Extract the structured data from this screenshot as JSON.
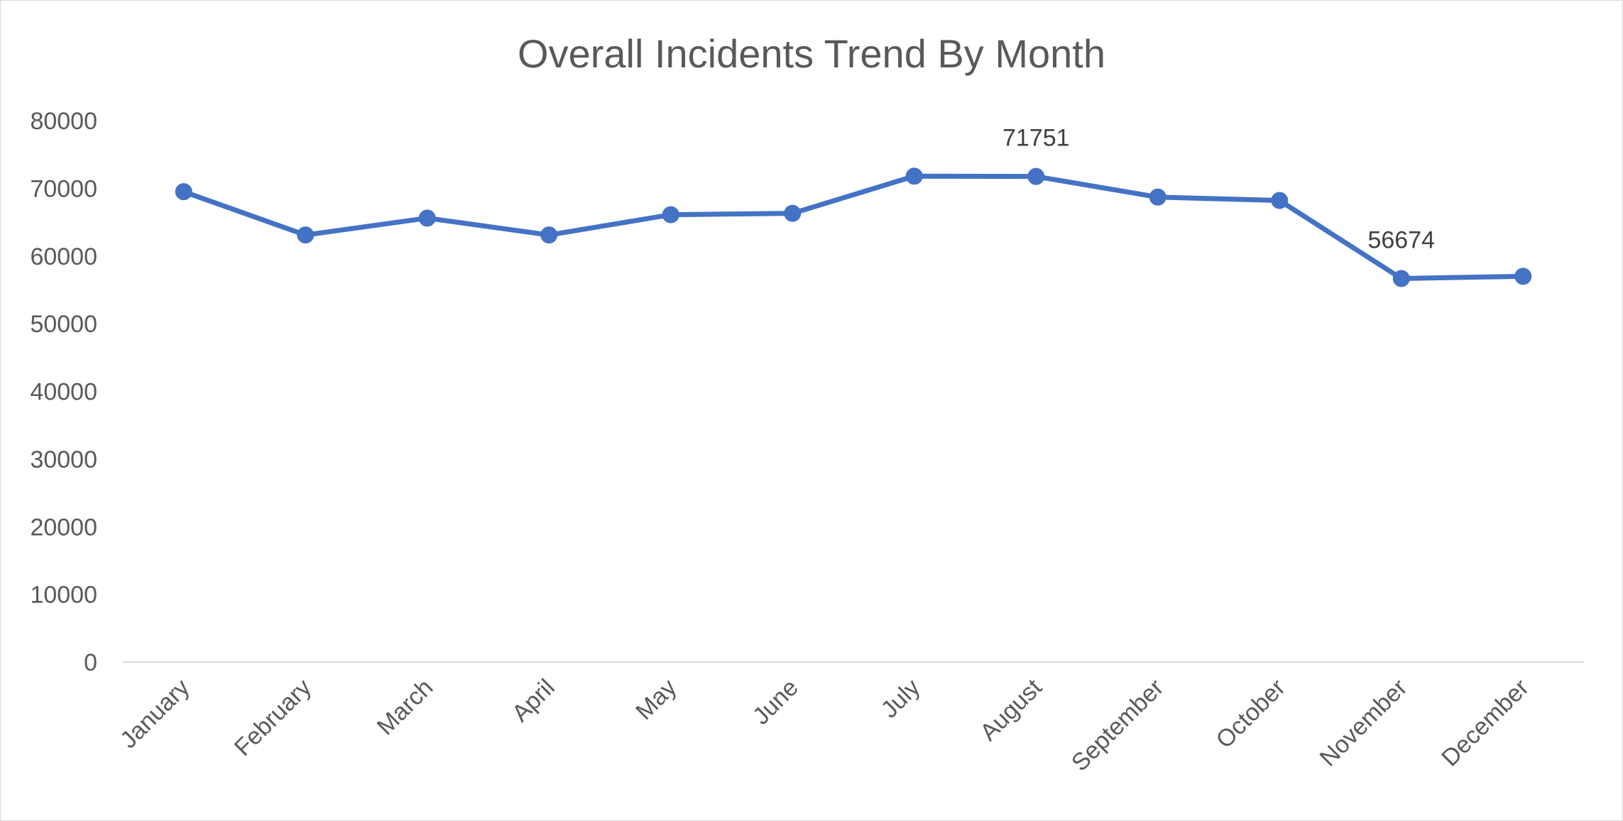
{
  "chart_data": {
    "type": "line",
    "title": "Overall Incidents Trend By Month",
    "xlabel": "",
    "ylabel": "",
    "categories": [
      "January",
      "February",
      "March",
      "April",
      "May",
      "June",
      "July",
      "August",
      "September",
      "October",
      "November",
      "December"
    ],
    "series": [
      {
        "values": [
          69500,
          63100,
          65600,
          63100,
          66100,
          66300,
          71800,
          71751,
          68700,
          68200,
          56674,
          57000
        ],
        "color": "#4472c4"
      }
    ],
    "data_labels": [
      {
        "category": "August",
        "text": "71751"
      },
      {
        "category": "November",
        "text": "56674"
      }
    ],
    "ylim": [
      0,
      80000
    ],
    "yticks": [
      "0",
      "10000",
      "20000",
      "30000",
      "40000",
      "50000",
      "60000",
      "70000",
      "80000"
    ],
    "grid": false,
    "legend": "none",
    "colors": {
      "line": "#4472c4",
      "axis": "#d9d9d9",
      "text": "#595959"
    }
  }
}
